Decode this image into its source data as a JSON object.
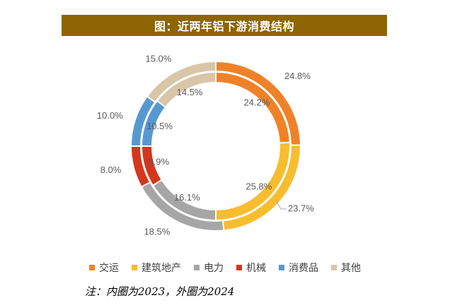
{
  "title": "图：近两年铝下游消费结构",
  "note": "注：内圈为2023，外圈为2024",
  "chart_data": {
    "type": "donut",
    "categories": [
      "交运",
      "建筑地产",
      "电力",
      "机械",
      "消费品",
      "其他"
    ],
    "colors": [
      "#ef8228",
      "#f8bd2f",
      "#a6a6a6",
      "#d4371c",
      "#5699d1",
      "#d8c6a7"
    ],
    "series": [
      {
        "name": "2023",
        "ring": "inner",
        "values": [
          24.2,
          25.8,
          16.1,
          8.9,
          10.5,
          14.5
        ],
        "labels": [
          "24.2%",
          "25.8%",
          "16.1%",
          "8.9%",
          "10.5%",
          "14.5%"
        ]
      },
      {
        "name": "2024",
        "ring": "outer",
        "values": [
          24.8,
          23.7,
          18.5,
          8.0,
          10.0,
          15.0
        ],
        "labels": [
          "24.8%",
          "23.7%",
          "18.5%",
          "8.0%",
          "10.0%",
          "15.0%"
        ]
      }
    ]
  }
}
